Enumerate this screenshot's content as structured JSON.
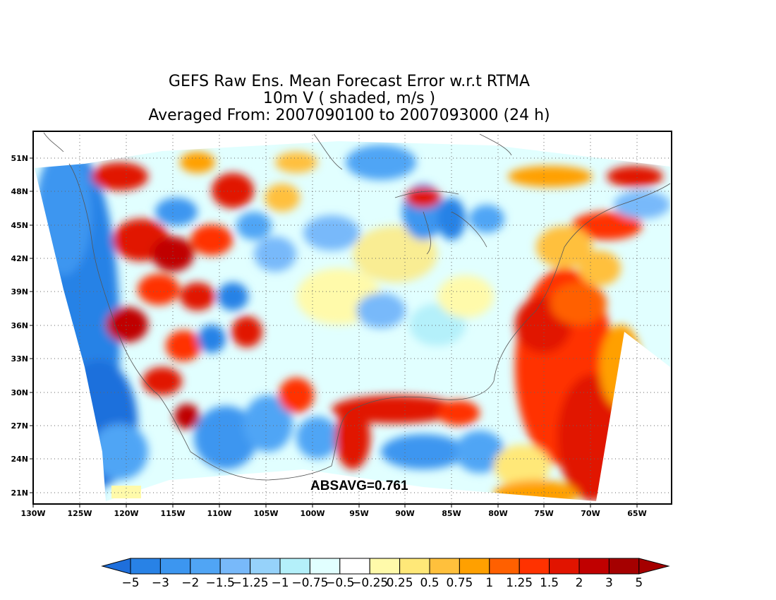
{
  "title": {
    "line1": "GEFS Raw Ens. Mean Forecast Error w.r.t RTMA",
    "line2": "10m V ( shaded, m/s )",
    "line3": "Averaged From: 2007090100 to 2007093000 (24 h)"
  },
  "map": {
    "lon_range": [
      -130,
      -62
    ],
    "lat_range": [
      19.5,
      52
    ],
    "lat_ticks": [
      "51N",
      "48N",
      "45N",
      "42N",
      "39N",
      "36N",
      "33N",
      "30N",
      "27N",
      "24N",
      "21N"
    ],
    "lon_ticks": [
      "130W",
      "125W",
      "120W",
      "115W",
      "110W",
      "105W",
      "100W",
      "95W",
      "90W",
      "85W",
      "80W",
      "75W",
      "70W",
      "65W"
    ],
    "grid": "dotted",
    "shading_region": "CONUS RTMA domain",
    "negative_areas": [
      "Pacific offshore",
      "Great Lakes",
      "Gulf of Mexico (west)",
      "Mexico interior",
      "northern plains"
    ],
    "positive_areas": [
      "Atlantic offshore",
      "Gulf of Mexico coastal band",
      "Great Basin / Intermountain West",
      "California coast"
    ]
  },
  "stat_label": "ABSAVG=0.761",
  "colorbar": {
    "labels": [
      "−5",
      "−3",
      "−2",
      "−1.5",
      "−1.25",
      "−1",
      "−0.75",
      "−0.5",
      "−0.25",
      "0.25",
      "0.5",
      "0.75",
      "1",
      "1.25",
      "1.5",
      "2",
      "3",
      "5"
    ],
    "colors": [
      "#1e6fdc",
      "#2882e6",
      "#3c96f0",
      "#50a5f5",
      "#78b9fa",
      "#96d2fa",
      "#b4f0fa",
      "#e1ffff",
      "#ffffff",
      "#fffaaa",
      "#ffe878",
      "#ffc03c",
      "#ffa000",
      "#ff6000",
      "#ff3200",
      "#e11400",
      "#c00000",
      "#a50000"
    ]
  }
}
